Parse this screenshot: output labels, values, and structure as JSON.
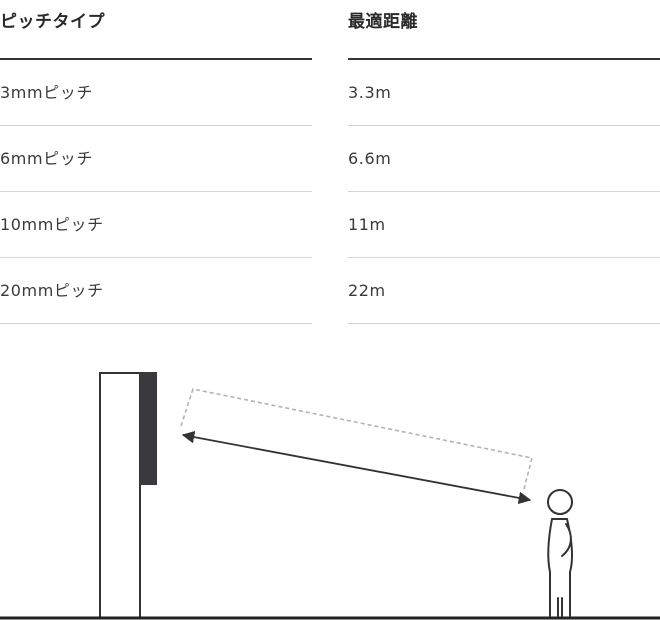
{
  "table": {
    "headers": {
      "pitch": "ピッチタイプ",
      "distance": "最適距離"
    },
    "rows": [
      {
        "pitch": "3mmピッチ",
        "distance": "3.3m"
      },
      {
        "pitch": "6mmピッチ",
        "distance": "6.6m"
      },
      {
        "pitch": "10mmピッチ",
        "distance": "11m"
      },
      {
        "pitch": "20mmピッチ",
        "distance": "22m"
      }
    ]
  },
  "diagram": {
    "icons": [
      "display-panel-icon",
      "viewing-distance-arrow-icon",
      "person-icon",
      "ground-line-icon"
    ],
    "colors": {
      "panel_dark": "#3a3a3e",
      "line": "#333333",
      "dashed": "#b3b3b3"
    }
  }
}
